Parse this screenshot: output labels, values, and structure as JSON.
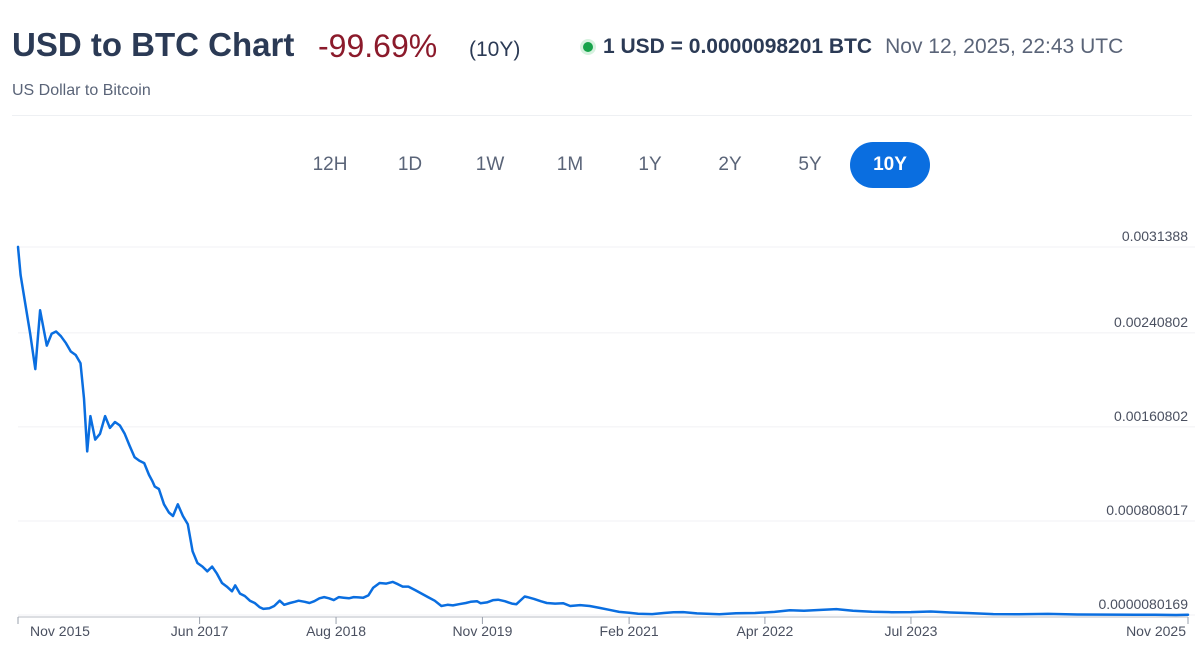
{
  "header": {
    "title": "USD to BTC Chart",
    "change": "-99.69%",
    "period": "(10Y)",
    "rate": "1 USD = 0.0000098201 BTC",
    "timestamp": "Nov 12, 2025, 22:43 UTC",
    "subtitle": "US Dollar to Bitcoin"
  },
  "ranges": [
    "12H",
    "1D",
    "1W",
    "1M",
    "1Y",
    "2Y",
    "5Y",
    "10Y"
  ],
  "active_range": "10Y",
  "colors": {
    "line": "#0a6ee0",
    "negative": "#8b1a2b",
    "live": "#16a34a",
    "accent": "#0a6ee0"
  },
  "chart_data": {
    "type": "line",
    "title": "",
    "xlabel": "",
    "ylabel": "",
    "y_tick_labels": [
      "0.0031388",
      "0.00240802",
      "0.00160802",
      "0.000808017",
      "0.0000080169"
    ],
    "y_ticks": [
      0.0031388,
      0.00240802,
      0.00160802,
      0.000808017,
      8.0169e-06
    ],
    "ylim": [
      8.0169e-06,
      0.0031388
    ],
    "x_tick_labels": [
      "Nov 2015",
      "Jun 2017",
      "Aug 2018",
      "Nov 2019",
      "Feb 2021",
      "Apr 2022",
      "Jul 2023",
      "Nov 2025"
    ],
    "x_ticks": [
      "2015-11-12",
      "2017-06-01",
      "2018-08-01",
      "2019-11-01",
      "2021-02-01",
      "2022-04-01",
      "2023-07-01",
      "2025-11-12"
    ],
    "xlim": [
      "2015-11-12",
      "2025-11-12"
    ],
    "grid": true,
    "legend": "none",
    "series": [
      {
        "x": [
          "2015-11-12",
          "2015-11-20",
          "2015-12-05",
          "2015-12-20",
          "2016-01-05",
          "2016-01-20",
          "2016-02-10",
          "2016-02-25",
          "2016-03-10",
          "2016-03-25",
          "2016-04-10",
          "2016-04-25",
          "2016-05-10",
          "2016-05-25",
          "2016-06-05",
          "2016-06-15",
          "2016-06-25",
          "2016-07-10",
          "2016-07-25",
          "2016-08-10",
          "2016-08-25",
          "2016-09-10",
          "2016-09-25",
          "2016-10-10",
          "2016-10-25",
          "2016-11-10",
          "2016-11-25",
          "2016-12-10",
          "2016-12-25",
          "2017-01-04",
          "2017-01-12",
          "2017-01-25",
          "2017-02-10",
          "2017-02-25",
          "2017-03-10",
          "2017-03-25",
          "2017-04-10",
          "2017-04-25",
          "2017-05-10",
          "2017-05-25",
          "2017-06-10",
          "2017-06-25",
          "2017-07-10",
          "2017-07-25",
          "2017-08-10",
          "2017-08-25",
          "2017-09-10",
          "2017-09-20",
          "2017-10-05",
          "2017-10-20",
          "2017-11-05",
          "2017-11-20",
          "2017-12-05",
          "2017-12-17",
          "2018-01-05",
          "2018-01-20",
          "2018-02-06",
          "2018-02-20",
          "2018-03-10",
          "2018-03-25",
          "2018-04-06",
          "2018-04-25",
          "2018-05-10",
          "2018-05-25",
          "2018-06-10",
          "2018-06-25",
          "2018-07-10",
          "2018-07-25",
          "2018-08-10",
          "2018-08-25",
          "2018-09-10",
          "2018-09-25",
          "2018-10-10",
          "2018-10-25",
          "2018-11-10",
          "2018-11-25",
          "2018-12-15",
          "2019-01-05",
          "2019-01-25",
          "2019-02-10",
          "2019-02-25",
          "2019-03-15",
          "2019-04-05",
          "2019-04-25",
          "2019-05-15",
          "2019-06-05",
          "2019-06-26",
          "2019-07-15",
          "2019-08-01",
          "2019-08-20",
          "2019-09-10",
          "2019-09-25",
          "2019-10-15",
          "2019-10-26",
          "2019-11-15",
          "2019-12-05",
          "2019-12-20",
          "2020-01-10",
          "2020-02-01",
          "2020-02-15",
          "2020-03-12",
          "2020-03-20",
          "2020-04-10",
          "2020-05-01",
          "2020-05-20",
          "2020-06-15",
          "2020-07-10",
          "2020-08-01",
          "2020-09-01",
          "2020-10-01",
          "2020-11-01",
          "2020-12-01",
          "2021-01-01",
          "2021-02-01",
          "2021-03-01",
          "2021-04-14",
          "2021-05-20",
          "2021-06-20",
          "2021-07-20",
          "2021-09-01",
          "2021-11-10",
          "2022-01-01",
          "2022-03-01",
          "2022-05-01",
          "2022-06-18",
          "2022-08-01",
          "2022-10-01",
          "2022-11-10",
          "2023-01-01",
          "2023-03-01",
          "2023-05-01",
          "2023-07-01",
          "2023-09-01",
          "2023-11-01",
          "2024-01-01",
          "2024-03-14",
          "2024-06-01",
          "2024-09-01",
          "2024-12-01",
          "2025-03-01",
          "2025-06-01",
          "2025-08-01",
          "2025-10-06",
          "2025-11-12"
        ],
        "y": [
          0.00314,
          0.0029,
          0.00265,
          0.0024,
          0.0021,
          0.0026,
          0.0023,
          0.0024,
          0.00242,
          0.00238,
          0.00232,
          0.00225,
          0.00222,
          0.00215,
          0.00185,
          0.0014,
          0.0017,
          0.0015,
          0.00155,
          0.0017,
          0.0016,
          0.00165,
          0.00162,
          0.00155,
          0.00145,
          0.00135,
          0.00132,
          0.0013,
          0.0012,
          0.00115,
          0.0011,
          0.00108,
          0.00095,
          0.00088,
          0.00085,
          0.00095,
          0.00085,
          0.00078,
          0.00055,
          0.00045,
          0.00042,
          0.00038,
          0.00042,
          0.00036,
          0.00028,
          0.00025,
          0.00021,
          0.00026,
          0.00019,
          0.00017,
          0.00013,
          0.00011,
          7.5e-05,
          6e-05,
          6.5e-05,
          8.5e-05,
          0.00013,
          9.5e-05,
          0.00011,
          0.00012,
          0.00013,
          0.00012,
          0.00011,
          0.000125,
          0.00015,
          0.00016,
          0.00015,
          0.000135,
          0.00016,
          0.000155,
          0.00015,
          0.00016,
          0.000158,
          0.000155,
          0.000175,
          0.00024,
          0.00028,
          0.000275,
          0.00029,
          0.00027,
          0.00025,
          0.00025,
          0.00022,
          0.00019,
          0.00016,
          0.00013,
          8.5e-05,
          9.5e-05,
          9e-05,
          0.0001,
          0.00011,
          0.00012,
          0.000125,
          0.000108,
          0.000115,
          0.000135,
          0.000138,
          0.000125,
          0.000105,
          0.0001,
          0.000165,
          0.00016,
          0.000145,
          0.000125,
          0.00011,
          0.000105,
          0.000108,
          8.5e-05,
          9.2e-05,
          8.5e-05,
          6.8e-05,
          5.2e-05,
          3.4e-05,
          2.8e-05,
          1.8e-05,
          1.6e-05,
          2.5e-05,
          3.1e-05,
          3.3e-05,
          2.2e-05,
          1.5e-05,
          2.3e-05,
          2.5e-05,
          3.4e-05,
          4.8e-05,
          4.5e-05,
          5.2e-05,
          5.8e-05,
          4.5e-05,
          3.6e-05,
          3.2e-05,
          3.3e-05,
          3.8e-05,
          2.9e-05,
          2.4e-05,
          1.6e-05,
          1.5e-05,
          1.7e-05,
          1.2e-05,
          1.1e-05,
          9.8e-06,
          9.6e-06,
          8.2e-06,
          9.8201e-06
        ]
      }
    ]
  }
}
